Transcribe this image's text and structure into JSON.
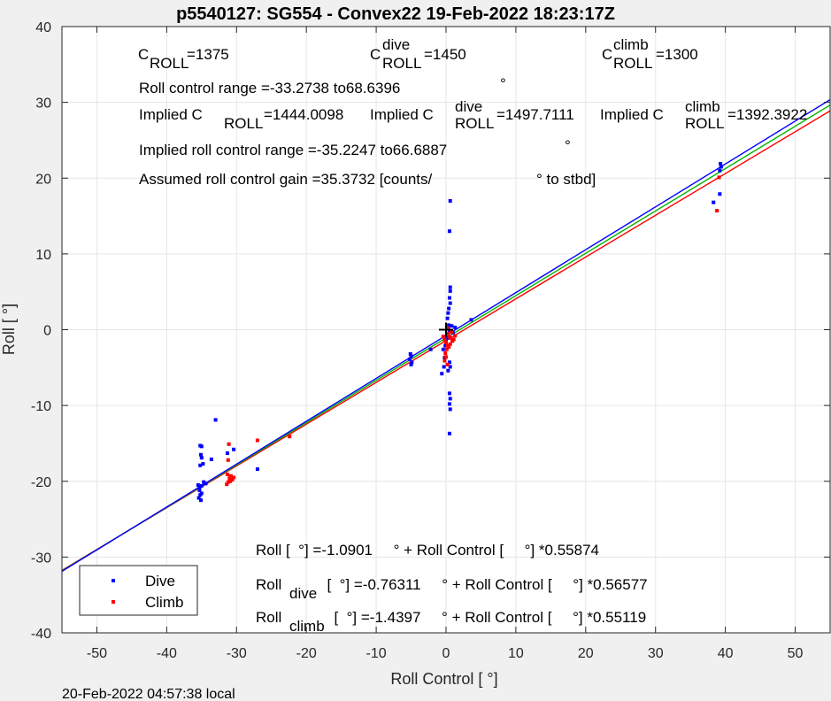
{
  "chart_data": {
    "type": "scatter",
    "title": "p5540127: SG554 - Convex22 19-Feb-2022 18:23:17Z",
    "xlabel": "Roll Control [  °]",
    "ylabel": "Roll [  °]",
    "xlim": [
      -55,
      55
    ],
    "ylim": [
      -40,
      40
    ],
    "xticks": [
      -50,
      -40,
      -30,
      -20,
      -10,
      0,
      10,
      20,
      30,
      40,
      50
    ],
    "yticks": [
      -40,
      -30,
      -20,
      -10,
      0,
      10,
      20,
      30,
      40
    ],
    "grid": true,
    "legend": {
      "placement": "bottom-left",
      "entries": [
        "Dive",
        "Climb"
      ]
    },
    "series": [
      {
        "name": "Dive",
        "color": "#0000ff",
        "points": [
          [
            -35.5,
            -20.5
          ],
          [
            -35.3,
            -21.2
          ],
          [
            -35.2,
            -21.8
          ],
          [
            -35.4,
            -22.2
          ],
          [
            -35.1,
            -22.5
          ],
          [
            -35.0,
            -21.6
          ],
          [
            -35.3,
            -20.9
          ],
          [
            -35.0,
            -20.6
          ],
          [
            -34.7,
            -20.1
          ],
          [
            -34.4,
            -20.3
          ],
          [
            -35.2,
            -15.3
          ],
          [
            -35.0,
            -15.4
          ],
          [
            -35.1,
            -16.5
          ],
          [
            -35.0,
            -16.9
          ],
          [
            -35.2,
            -17.9
          ],
          [
            -34.8,
            -17.7
          ],
          [
            -33.6,
            -17.1
          ],
          [
            -33.0,
            -11.9
          ],
          [
            -31.3,
            -16.3
          ],
          [
            -30.4,
            -15.8
          ],
          [
            -27.0,
            -18.4
          ],
          [
            -5.1,
            -3.2
          ],
          [
            -5.0,
            -3.5
          ],
          [
            -5.2,
            -3.9
          ],
          [
            -4.9,
            -4.3
          ],
          [
            -5.0,
            -4.6
          ],
          [
            -2.2,
            -2.6
          ],
          [
            -0.6,
            -5.8
          ],
          [
            -0.3,
            -4.9
          ],
          [
            -0.2,
            -3.7
          ],
          [
            -0.4,
            -2.6
          ],
          [
            -0.1,
            -2.1
          ],
          [
            0.0,
            -1.6
          ],
          [
            0.1,
            -1.1
          ],
          [
            0.2,
            -0.6
          ],
          [
            0.3,
            0.1
          ],
          [
            0.4,
            0.6
          ],
          [
            0.5,
            -0.3
          ],
          [
            0.2,
            1.5
          ],
          [
            0.3,
            2.2
          ],
          [
            0.4,
            2.8
          ],
          [
            0.6,
            3.5
          ],
          [
            0.5,
            4.2
          ],
          [
            0.6,
            5.1
          ],
          [
            0.6,
            5.6
          ],
          [
            0.5,
            13.0
          ],
          [
            0.6,
            17.0
          ],
          [
            0.5,
            -4.3
          ],
          [
            0.6,
            -4.9
          ],
          [
            0.3,
            -5.4
          ],
          [
            0.5,
            -8.4
          ],
          [
            0.6,
            -9.1
          ],
          [
            0.5,
            -9.8
          ],
          [
            0.6,
            -10.5
          ],
          [
            0.5,
            -13.7
          ],
          [
            1.0,
            -0.4
          ],
          [
            1.3,
            0.3
          ],
          [
            0.8,
            0.5
          ],
          [
            3.6,
            1.3
          ],
          [
            38.3,
            16.8
          ],
          [
            39.2,
            17.9
          ],
          [
            39.2,
            21.0
          ],
          [
            39.4,
            21.5
          ],
          [
            39.3,
            21.9
          ]
        ]
      },
      {
        "name": "Climb",
        "color": "#ff0000",
        "points": [
          [
            -31.1,
            -15.1
          ],
          [
            -31.2,
            -17.2
          ],
          [
            -31.3,
            -19.1
          ],
          [
            -31.0,
            -19.6
          ],
          [
            -30.8,
            -19.3
          ],
          [
            -30.9,
            -20.0
          ],
          [
            -31.4,
            -20.4
          ],
          [
            -31.2,
            -20.1
          ],
          [
            -30.6,
            -19.8
          ],
          [
            -30.4,
            -19.5
          ],
          [
            -27.0,
            -14.6
          ],
          [
            -22.4,
            -14.1
          ],
          [
            -0.4,
            -0.9
          ],
          [
            -0.2,
            -1.3
          ],
          [
            0.0,
            -1.7
          ],
          [
            0.2,
            -2.1
          ],
          [
            0.1,
            -2.6
          ],
          [
            -0.1,
            -3.1
          ],
          [
            0.0,
            -3.6
          ],
          [
            -0.2,
            -4.1
          ],
          [
            0.2,
            -4.6
          ],
          [
            0.3,
            -0.5
          ],
          [
            0.5,
            -0.9
          ],
          [
            0.7,
            -1.1
          ],
          [
            0.9,
            -1.5
          ],
          [
            1.1,
            -1.3
          ],
          [
            1.3,
            -0.8
          ],
          [
            0.4,
            -2.3
          ],
          [
            0.6,
            -1.9
          ],
          [
            0.8,
            -0.3
          ],
          [
            0.2,
            0.2
          ],
          [
            38.8,
            15.7
          ],
          [
            39.1,
            20.1
          ]
        ]
      }
    ],
    "fit_lines": [
      {
        "name": "Roll",
        "color": "#00b400",
        "intercept": -1.0901,
        "slope": 0.55874
      },
      {
        "name": "Roll dive",
        "color": "#0000ff",
        "intercept": -0.76311,
        "slope": 0.56577
      },
      {
        "name": "Roll climb",
        "color": "#ff0000",
        "intercept": -1.4397,
        "slope": 0.55119
      }
    ],
    "center_marker": [
      0,
      0
    ],
    "annotations": {
      "c_roll": {
        "label": "C",
        "sub": "ROLL",
        "value": "=1375"
      },
      "c_roll_dive": {
        "label": "C",
        "sup": "dive",
        "sub": "ROLL",
        "value": "=1450"
      },
      "c_roll_climb": {
        "label": "C",
        "sup": "climb",
        "sub": "ROLL",
        "value": "=1300"
      },
      "range_text": "Roll control range =-33.2738 to68.6396",
      "implied_1": {
        "label": "Implied C",
        "sub": "ROLL",
        "value": "=1444.0098"
      },
      "implied_2": {
        "label": "Implied C",
        "sup": "dive",
        "sub": "ROLL",
        "value": "=1497.7111"
      },
      "implied_3": {
        "label": "Implied C",
        "sup": "climb",
        "sub": "ROLL",
        "value": "=1392.3922"
      },
      "implied_range_text": "Implied roll control range =-35.2247 to66.6887",
      "gain_text_1": "Assumed roll control gain =35.3732 [counts/",
      "gain_text_2": "° to stbd]",
      "eq1": "Roll [  °] =-1.0901     ° + Roll Control [     °] *0.55874",
      "eq2_label": "Roll",
      "eq2_sub": "dive",
      "eq2_rest": "  [  °] =-0.76311     ° + Roll Control [     °] *0.56577",
      "eq3_label": "Roll",
      "eq3_sub": "climb",
      "eq3_rest": "  [  °] =-1.4397     ° + Roll Control [     °] *0.55119"
    },
    "stray_degree_marks": [
      "°",
      "°"
    ]
  },
  "footer": {
    "timestamp": "20-Feb-2022 04:57:38 local"
  }
}
